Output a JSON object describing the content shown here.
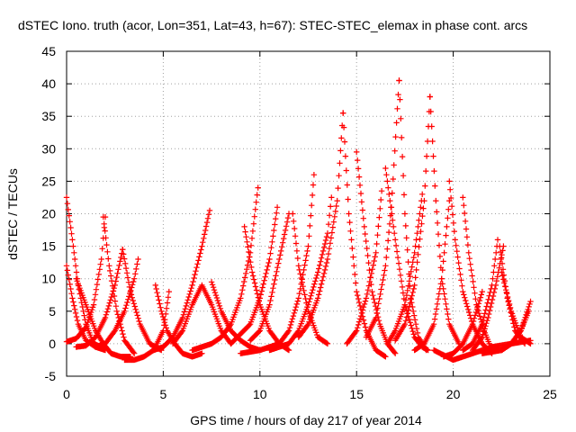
{
  "chart_data": {
    "type": "scatter",
    "title": "dSTEC Iono. truth (acor, Lon=351, Lat=43, h=67): STEC-STEC_elemax in phase cont. arcs",
    "xlabel": "GPS time / hours of day 217 of year 2014",
    "ylabel": "dSTEC  / TECUs",
    "xlim": [
      0,
      25
    ],
    "ylim": [
      -5,
      45
    ],
    "xticks": [
      "0",
      "5",
      "10",
      "15",
      "20",
      "25"
    ],
    "yticks": [
      "-5",
      "0",
      "5",
      "10",
      "15",
      "20",
      "25",
      "30",
      "35",
      "40",
      "45"
    ],
    "grid": true,
    "marker": "+",
    "color": "#ff0000",
    "series": [
      {
        "x": [
          0.0,
          0.3,
          0.6,
          1.0,
          1.4,
          1.8
        ],
        "y": [
          22.5,
          16,
          9,
          3,
          0,
          -0.5
        ]
      },
      {
        "x": [
          0.0,
          0.3,
          0.6,
          1.0,
          1.5,
          2.0
        ],
        "y": [
          12,
          7,
          3,
          0.5,
          -0.5,
          -1
        ]
      },
      {
        "x": [
          0.0,
          0.5,
          1.0,
          1.4,
          1.8,
          2.0
        ],
        "y": [
          0.3,
          0.8,
          2.5,
          6,
          13,
          19.5
        ]
      },
      {
        "x": [
          1.9,
          2.2,
          2.6,
          3.0,
          3.5
        ],
        "y": [
          19.5,
          12,
          5,
          0.5,
          -1.5
        ]
      },
      {
        "x": [
          0.5,
          1.0,
          1.5,
          2.0,
          2.5,
          2.9
        ],
        "y": [
          -0.5,
          -0.3,
          1,
          4,
          9,
          14.5
        ]
      },
      {
        "x": [
          2.9,
          3.3,
          3.8,
          4.3,
          4.9
        ],
        "y": [
          14.5,
          8,
          3,
          0,
          -1
        ]
      },
      {
        "x": [
          0.5,
          1.0,
          1.5,
          1.9,
          2.3,
          2.8,
          3.3
        ],
        "y": [
          10,
          6,
          2,
          0,
          -1.5,
          -2,
          -2
        ]
      },
      {
        "x": [
          1.5,
          2.0,
          2.5,
          3.0,
          3.5,
          3.7
        ],
        "y": [
          -0.5,
          0,
          2,
          5,
          10,
          13
        ]
      },
      {
        "x": [
          3.0,
          3.5,
          4.0,
          4.5,
          5.0,
          5.3
        ],
        "y": [
          -2.5,
          -2.5,
          -2,
          -1,
          2,
          8
        ]
      },
      {
        "x": [
          4.6,
          4.9,
          5.2,
          5.6,
          6.0,
          6.5,
          7.0
        ],
        "y": [
          9,
          5,
          2,
          0,
          -1.5,
          -2,
          -1.5
        ]
      },
      {
        "x": [
          4.5,
          5.0,
          5.5,
          6.0,
          6.5,
          7.0,
          7.4
        ],
        "y": [
          -1,
          -0.5,
          1,
          4,
          9,
          15,
          20.5
        ]
      },
      {
        "x": [
          5.5,
          6.0,
          6.5,
          7.0,
          7.5,
          8.0,
          8.5
        ],
        "y": [
          0,
          2,
          6,
          9,
          6,
          2,
          0
        ]
      },
      {
        "x": [
          7.5,
          8.0,
          8.5,
          9.0,
          9.5,
          10.0
        ],
        "y": [
          9.5,
          5,
          2,
          0.5,
          -0.5,
          -1
        ]
      },
      {
        "x": [
          6.5,
          7.5,
          8.0,
          8.5,
          9.0,
          9.5,
          9.9
        ],
        "y": [
          -1,
          0,
          1,
          3,
          7,
          14,
          24
        ]
      },
      {
        "x": [
          9.2,
          9.6,
          10.0,
          10.5,
          11.0,
          11.5
        ],
        "y": [
          18,
          11,
          6,
          2,
          0,
          -1
        ]
      },
      {
        "x": [
          8.5,
          9.5,
          10.0,
          10.5,
          10.9
        ],
        "y": [
          0,
          3,
          7,
          13,
          21
        ]
      },
      {
        "x": [
          11.7,
          12.0,
          12.5,
          13.0,
          13.5
        ],
        "y": [
          20,
          12,
          5,
          1,
          0
        ]
      },
      {
        "x": [
          9.5,
          10.0,
          10.5,
          11.0,
          11.5
        ],
        "y": [
          0.5,
          2,
          6,
          13,
          20
        ]
      },
      {
        "x": [
          9.0,
          10.0,
          11.0,
          11.5,
          12.0,
          12.5,
          12.8
        ],
        "y": [
          -1.5,
          -1,
          0,
          2,
          7,
          15,
          26
        ]
      },
      {
        "x": [
          10.5,
          11.5,
          12.0,
          12.5,
          13.0,
          13.5,
          13.7
        ],
        "y": [
          -1,
          0,
          2,
          6,
          11,
          17,
          22.5
        ]
      },
      {
        "x": [
          12.0,
          12.5,
          13.0,
          13.5,
          14.0,
          14.3
        ],
        "y": [
          1,
          3,
          7,
          13,
          22,
          35.5
        ]
      },
      {
        "x": [
          14.3,
          14.6,
          15.0,
          15.5,
          16.0,
          16.5
        ],
        "y": [
          35.5,
          20,
          8,
          2,
          -1,
          -2
        ]
      },
      {
        "x": [
          14.5,
          15.0,
          15.5,
          16.0,
          16.3
        ],
        "y": [
          0,
          2,
          7,
          14,
          23.5
        ]
      },
      {
        "x": [
          15.0,
          15.4,
          15.8,
          16.2,
          16.6,
          17.0
        ],
        "y": [
          29.5,
          18,
          8,
          3,
          0,
          -1.5
        ]
      },
      {
        "x": [
          15.5,
          16.0,
          16.5,
          16.8,
          17.2
        ],
        "y": [
          1,
          4,
          12,
          21,
          40.5
        ]
      },
      {
        "x": [
          17.2,
          17.5,
          17.8,
          18.2,
          18.6
        ],
        "y": [
          40.5,
          20,
          7,
          1,
          -1
        ]
      },
      {
        "x": [
          16.5,
          17.0,
          17.5,
          18.0,
          18.4,
          18.7
        ],
        "y": [
          27,
          16,
          6,
          1,
          -0.5,
          -1
        ]
      },
      {
        "x": [
          16.6,
          17.0,
          17.5,
          18.0,
          18.4
        ],
        "y": [
          0,
          2,
          6,
          14,
          23
        ]
      },
      {
        "x": [
          17.0,
          17.5,
          18.0,
          18.5,
          18.8
        ],
        "y": [
          0.5,
          3,
          9,
          22,
          38
        ]
      },
      {
        "x": [
          18.8,
          19.1,
          19.4,
          19.8,
          20.3
        ],
        "y": [
          38,
          22,
          10,
          3,
          0
        ]
      },
      {
        "x": [
          18.0,
          18.5,
          19.0,
          19.4,
          19.8
        ],
        "y": [
          -1,
          0,
          3,
          10,
          22
        ]
      },
      {
        "x": [
          19.8,
          20.1,
          20.5,
          21.0,
          21.5,
          22.0
        ],
        "y": [
          25,
          16,
          8,
          3,
          0,
          -1.5
        ]
      },
      {
        "x": [
          19.5,
          20.0,
          20.5,
          21.0,
          21.5
        ],
        "y": [
          -2,
          -1.5,
          0,
          3,
          8
        ]
      },
      {
        "x": [
          20.5,
          20.8,
          21.2,
          21.6,
          22.0
        ],
        "y": [
          22.5,
          14,
          6,
          2,
          -1
        ]
      },
      {
        "x": [
          20.5,
          21.0,
          21.5,
          22.0,
          22.3
        ],
        "y": [
          -1,
          0,
          3,
          9,
          16
        ]
      },
      {
        "x": [
          21.0,
          21.5,
          21.8,
          22.2,
          22.6
        ],
        "y": [
          -1,
          1,
          4,
          9,
          15
        ]
      },
      {
        "x": [
          22.4,
          22.8,
          23.2,
          23.7
        ],
        "y": [
          15,
          7,
          2,
          0
        ]
      },
      {
        "x": [
          22.5,
          23.0,
          23.5,
          24.0
        ],
        "y": [
          11,
          5,
          1,
          0
        ]
      },
      {
        "x": [
          22.5,
          23.0,
          23.5,
          23.9
        ],
        "y": [
          -1,
          0,
          2,
          5
        ]
      },
      {
        "x": [
          21.5,
          22.5,
          23.0,
          23.5,
          24.0
        ],
        "y": [
          -1.5,
          -1,
          0,
          2,
          6.5
        ]
      },
      {
        "x": [
          19.0,
          20.0,
          21.0,
          22.0,
          23.0,
          24.0
        ],
        "y": [
          -1,
          -2.5,
          -1.5,
          -0.5,
          0,
          0.5
        ]
      }
    ]
  }
}
